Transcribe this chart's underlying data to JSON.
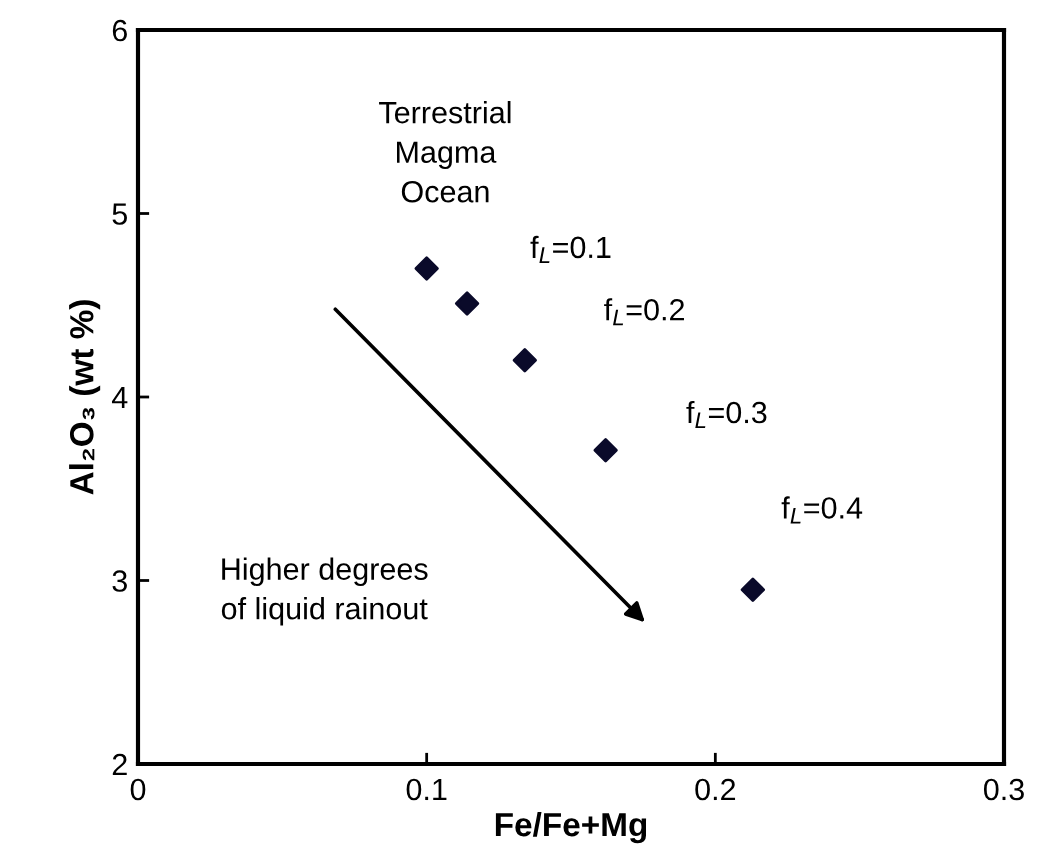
{
  "chart_data": {
    "type": "scatter",
    "xlabel": "Fe/Fe+Mg",
    "ylabel": "Al₂O₃ (wt %)",
    "x": [
      0.1,
      0.114,
      0.134,
      0.162,
      0.213
    ],
    "values": [
      4.7,
      4.51,
      4.2,
      3.71,
      2.95
    ],
    "color": "#0a0a2a",
    "marker": "diamond",
    "xlim": [
      0,
      0.3
    ],
    "xticks": [
      0,
      0.1,
      0.2,
      0.3
    ],
    "ylim": [
      2,
      6
    ],
    "yticks": [
      2,
      3,
      4,
      5,
      6
    ],
    "grid": false,
    "legend": false,
    "annotations": [
      "Terrestrial\nMagma\nOcean",
      "f$_{L}$=0.1",
      "f$_{L}$=0.2",
      "f$_{L}$=0.3",
      "f$_{L}$=0.4",
      "Higher degrees\nof liquid rainout"
    ]
  }
}
